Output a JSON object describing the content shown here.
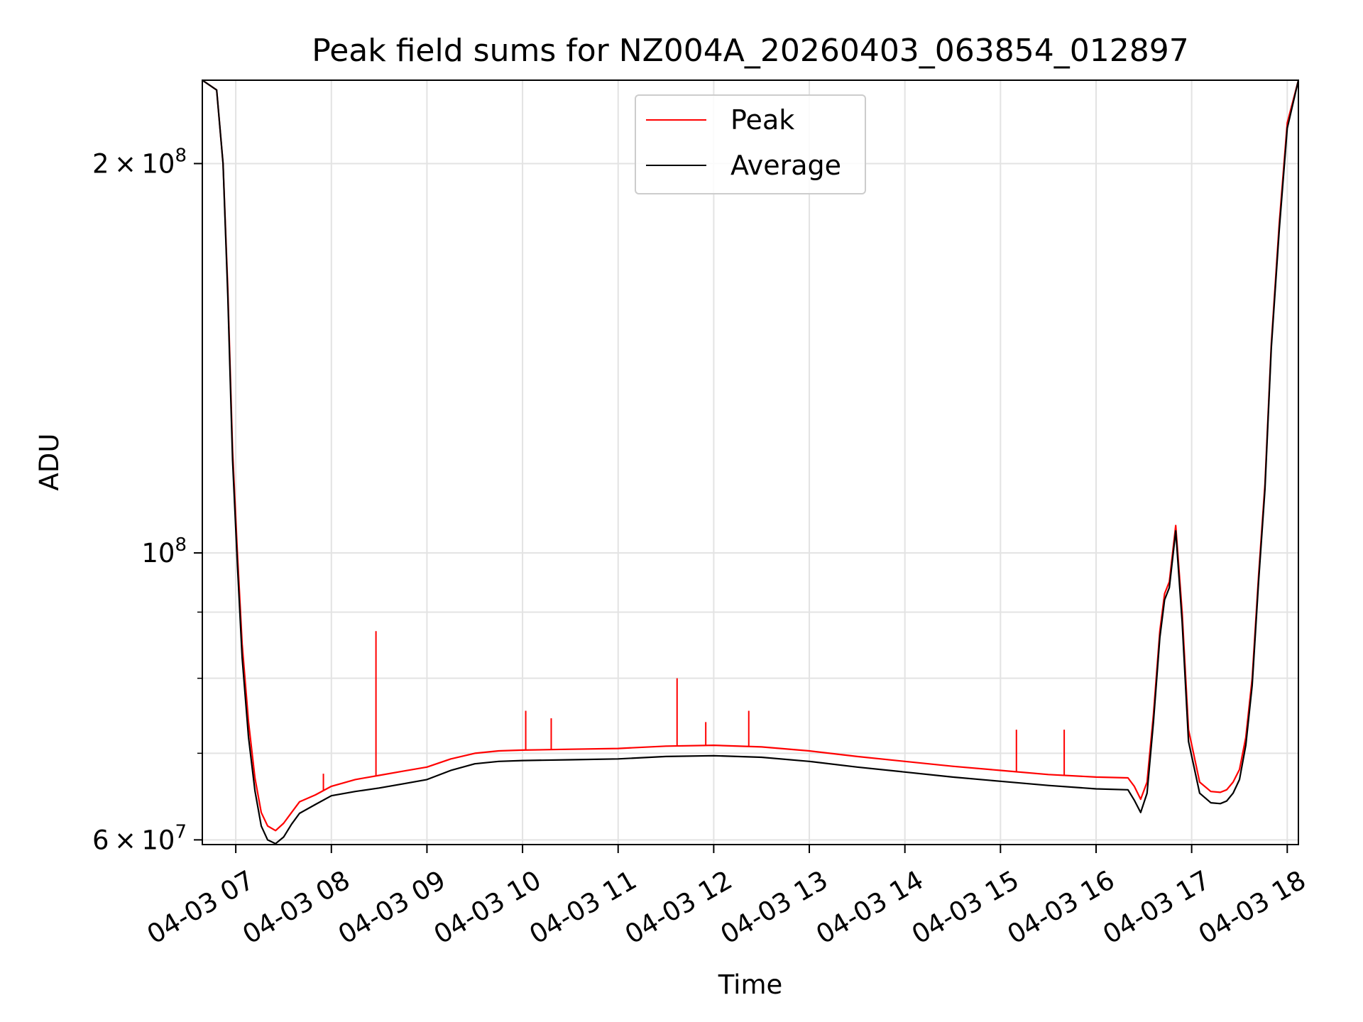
{
  "chart_data": {
    "type": "line",
    "title": "Peak field sums for NZ004A_20260403_063854_012897",
    "xlabel": "Time",
    "ylabel": "ADU",
    "y_scale": "log",
    "ylim": [
      59500000,
      232000000
    ],
    "xlim": [
      "2026-04-03 06:39",
      "2026-04-03 18:07"
    ],
    "grid": true,
    "legend_position": "upper center",
    "x_tick_labels": [
      "04-03 07",
      "04-03 08",
      "04-03 09",
      "04-03 10",
      "04-03 11",
      "04-03 12",
      "04-03 13",
      "04-03 14",
      "04-03 15",
      "04-03 16",
      "04-03 17",
      "04-03 18"
    ],
    "x_ticks": [
      "2026-04-03 07:00",
      "2026-04-03 08:00",
      "2026-04-03 09:00",
      "2026-04-03 10:00",
      "2026-04-03 11:00",
      "2026-04-03 12:00",
      "2026-04-03 13:00",
      "2026-04-03 14:00",
      "2026-04-03 15:00",
      "2026-04-03 16:00",
      "2026-04-03 17:00",
      "2026-04-03 18:00"
    ],
    "y_major_ticks": [
      {
        "value": 60000000,
        "mantissa": "6",
        "exp": "7"
      },
      {
        "value": 100000000,
        "mantissa": "",
        "exp": "8"
      },
      {
        "value": 200000000,
        "mantissa": "2",
        "exp": "8"
      }
    ],
    "y_minor_ticks": [
      70000000,
      80000000,
      90000000
    ],
    "series": [
      {
        "name": "Peak",
        "color": "#ff0000",
        "x": [
          "2026-04-03 06:39",
          "2026-04-03 06:48",
          "2026-04-03 06:52",
          "2026-04-03 06:55",
          "2026-04-03 06:58",
          "2026-04-03 07:01",
          "2026-04-03 07:04",
          "2026-04-03 07:08",
          "2026-04-03 07:12",
          "2026-04-03 07:16",
          "2026-04-03 07:20",
          "2026-04-03 07:25",
          "2026-04-03 07:30",
          "2026-04-03 07:35",
          "2026-04-03 07:40",
          "2026-04-03 07:50",
          "2026-04-03 08:00",
          "2026-04-03 08:15",
          "2026-04-03 08:30",
          "2026-04-03 08:45",
          "2026-04-03 09:00",
          "2026-04-03 09:15",
          "2026-04-03 09:30",
          "2026-04-03 09:45",
          "2026-04-03 10:00",
          "2026-04-03 10:30",
          "2026-04-03 11:00",
          "2026-04-03 11:30",
          "2026-04-03 12:00",
          "2026-04-03 12:30",
          "2026-04-03 13:00",
          "2026-04-03 13:30",
          "2026-04-03 14:00",
          "2026-04-03 14:30",
          "2026-04-03 15:00",
          "2026-04-03 15:30",
          "2026-04-03 16:00",
          "2026-04-03 16:20",
          "2026-04-03 16:24",
          "2026-04-03 16:28",
          "2026-04-03 16:32",
          "2026-04-03 16:36",
          "2026-04-03 16:40",
          "2026-04-03 16:43",
          "2026-04-03 16:46",
          "2026-04-03 16:50",
          "2026-04-03 16:54",
          "2026-04-03 16:58",
          "2026-04-03 17:05",
          "2026-04-03 17:12",
          "2026-04-03 17:18",
          "2026-04-03 17:22",
          "2026-04-03 17:26",
          "2026-04-03 17:30",
          "2026-04-03 17:34",
          "2026-04-03 17:38",
          "2026-04-03 17:42",
          "2026-04-03 17:46",
          "2026-04-03 17:50",
          "2026-04-03 17:55",
          "2026-04-03 18:00",
          "2026-04-03 18:07"
        ],
        "y": [
          232000000,
          228000000,
          200000000,
          160000000,
          120000000,
          100000000,
          85000000,
          74000000,
          67000000,
          63000000,
          61500000,
          61000000,
          61800000,
          63000000,
          64200000,
          65000000,
          66000000,
          66800000,
          67300000,
          67800000,
          68300000,
          69300000,
          70000000,
          70300000,
          70400000,
          70500000,
          70600000,
          70900000,
          71000000,
          70800000,
          70300000,
          69600000,
          69000000,
          68400000,
          67900000,
          67400000,
          67100000,
          67000000,
          66000000,
          64500000,
          66500000,
          75000000,
          87000000,
          93000000,
          95000000,
          105000000,
          90000000,
          73000000,
          66500000,
          65400000,
          65300000,
          65600000,
          66500000,
          68000000,
          72000000,
          80000000,
          96000000,
          113000000,
          145000000,
          180000000,
          215000000,
          232000000
        ]
      },
      {
        "name": "Average",
        "color": "#000000",
        "x": [
          "2026-04-03 06:39",
          "2026-04-03 06:48",
          "2026-04-03 06:52",
          "2026-04-03 06:55",
          "2026-04-03 06:58",
          "2026-04-03 07:01",
          "2026-04-03 07:04",
          "2026-04-03 07:08",
          "2026-04-03 07:12",
          "2026-04-03 07:16",
          "2026-04-03 07:20",
          "2026-04-03 07:25",
          "2026-04-03 07:30",
          "2026-04-03 07:35",
          "2026-04-03 07:40",
          "2026-04-03 07:50",
          "2026-04-03 08:00",
          "2026-04-03 08:15",
          "2026-04-03 08:30",
          "2026-04-03 08:45",
          "2026-04-03 09:00",
          "2026-04-03 09:15",
          "2026-04-03 09:30",
          "2026-04-03 09:45",
          "2026-04-03 10:00",
          "2026-04-03 10:30",
          "2026-04-03 11:00",
          "2026-04-03 11:30",
          "2026-04-03 12:00",
          "2026-04-03 12:30",
          "2026-04-03 13:00",
          "2026-04-03 13:30",
          "2026-04-03 14:00",
          "2026-04-03 14:30",
          "2026-04-03 15:00",
          "2026-04-03 15:30",
          "2026-04-03 16:00",
          "2026-04-03 16:20",
          "2026-04-03 16:24",
          "2026-04-03 16:28",
          "2026-04-03 16:32",
          "2026-04-03 16:36",
          "2026-04-03 16:40",
          "2026-04-03 16:43",
          "2026-04-03 16:46",
          "2026-04-03 16:50",
          "2026-04-03 16:54",
          "2026-04-03 16:58",
          "2026-04-03 17:05",
          "2026-04-03 17:12",
          "2026-04-03 17:18",
          "2026-04-03 17:22",
          "2026-04-03 17:26",
          "2026-04-03 17:30",
          "2026-04-03 17:34",
          "2026-04-03 17:38",
          "2026-04-03 17:42",
          "2026-04-03 17:46",
          "2026-04-03 17:50",
          "2026-04-03 17:55",
          "2026-04-03 18:00",
          "2026-04-03 18:07"
        ],
        "y": [
          232000000,
          228000000,
          200000000,
          158000000,
          118000000,
          98000000,
          83000000,
          72000000,
          65500000,
          61500000,
          60000000,
          59600000,
          60300000,
          61700000,
          62900000,
          63900000,
          64900000,
          65400000,
          65800000,
          66300000,
          66800000,
          67900000,
          68700000,
          69000000,
          69100000,
          69200000,
          69300000,
          69600000,
          69700000,
          69500000,
          69000000,
          68300000,
          67700000,
          67100000,
          66600000,
          66100000,
          65700000,
          65600000,
          64400000,
          63000000,
          65200000,
          74000000,
          86000000,
          92000000,
          94000000,
          104000000,
          88500000,
          71500000,
          65200000,
          64100000,
          64000000,
          64300000,
          65200000,
          66800000,
          71000000,
          79000000,
          95000000,
          112000000,
          144000000,
          178000000,
          213000000,
          232000000
        ]
      }
    ],
    "spikes": [
      {
        "series": "Peak",
        "x": "2026-04-03 08:28",
        "y": 87000000
      },
      {
        "series": "Peak",
        "x": "2026-04-03 11:37",
        "y": 80000000
      },
      {
        "series": "Peak",
        "x": "2026-04-03 12:22",
        "y": 75500000
      },
      {
        "series": "Peak",
        "x": "2026-04-03 10:02",
        "y": 75500000
      },
      {
        "series": "Peak",
        "x": "2026-04-03 10:18",
        "y": 74500000
      },
      {
        "series": "Peak",
        "x": "2026-04-03 11:55",
        "y": 74000000
      },
      {
        "series": "Peak",
        "x": "2026-04-03 15:10",
        "y": 73000000
      },
      {
        "series": "Peak",
        "x": "2026-04-03 15:40",
        "y": 73000000
      },
      {
        "series": "Peak",
        "x": "2026-04-03 07:55",
        "y": 67500000
      }
    ]
  },
  "legend": {
    "peak_label": "Peak",
    "average_label": "Average",
    "peak_color": "#ff0000",
    "average_color": "#000000"
  },
  "axis_chars": {
    "times": "×",
    "base": "10"
  }
}
